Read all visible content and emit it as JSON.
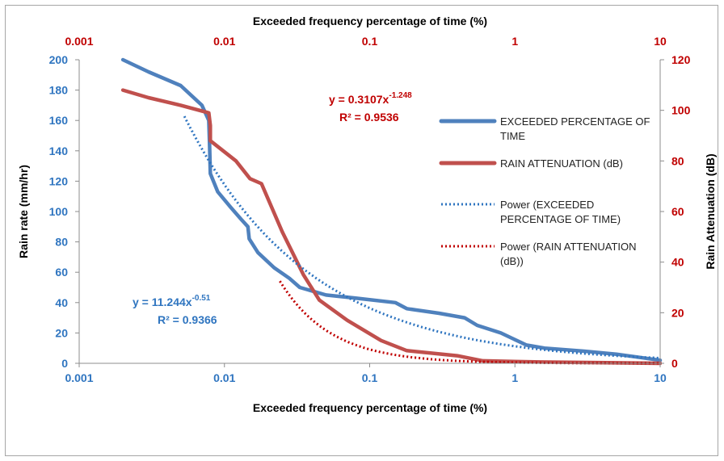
{
  "chart_data": {
    "type": "line",
    "title": "",
    "x_top": {
      "label": "Exceeded frequency percentage of time (%)",
      "scale": "log",
      "range": [
        0.001,
        10
      ],
      "ticks": [
        "0.001",
        "0.01",
        "0.1",
        "1",
        "10"
      ],
      "color": "#c00000"
    },
    "x_bottom": {
      "label": "Exceeded frequency percentage of time (%)",
      "scale": "log",
      "range": [
        0.001,
        10
      ],
      "ticks": [
        "0.001",
        "0.01",
        "0.1",
        "1",
        "10"
      ],
      "color": "#2f75c0"
    },
    "y_left": {
      "label": "Rain rate (mm/hr)",
      "range": [
        0,
        200
      ],
      "ticks": [
        "0",
        "20",
        "40",
        "60",
        "80",
        "100",
        "120",
        "140",
        "160",
        "180",
        "200"
      ],
      "color": "#2f75c0"
    },
    "y_right": {
      "label": "Rain Attenuation (dB)",
      "range": [
        0,
        120
      ],
      "ticks": [
        "0",
        "20",
        "40",
        "60",
        "80",
        "100",
        "120"
      ],
      "color": "#c00000"
    },
    "grid": false,
    "legend_position": "right",
    "series": [
      {
        "name": "EXCEEDED PERCENTAGE OF TIME",
        "axis": "left",
        "style": "solid",
        "color": "#4f81bd",
        "points": [
          [
            0.002,
            200
          ],
          [
            0.003,
            192
          ],
          [
            0.005,
            183
          ],
          [
            0.007,
            170
          ],
          [
            0.0078,
            160
          ],
          [
            0.0079,
            145
          ],
          [
            0.008,
            125
          ],
          [
            0.009,
            113
          ],
          [
            0.011,
            103
          ],
          [
            0.013,
            95
          ],
          [
            0.0145,
            90
          ],
          [
            0.0148,
            82
          ],
          [
            0.017,
            73
          ],
          [
            0.022,
            63
          ],
          [
            0.028,
            56
          ],
          [
            0.033,
            50
          ],
          [
            0.05,
            45
          ],
          [
            0.08,
            43
          ],
          [
            0.15,
            40
          ],
          [
            0.18,
            36
          ],
          [
            0.3,
            33
          ],
          [
            0.45,
            30
          ],
          [
            0.55,
            25
          ],
          [
            0.8,
            20
          ],
          [
            1.2,
            12
          ],
          [
            1.6,
            10
          ],
          [
            3,
            8
          ],
          [
            5,
            6
          ],
          [
            10,
            2
          ]
        ]
      },
      {
        "name": "RAIN ATTENUATION (dB)",
        "axis": "right",
        "style": "solid",
        "color": "#c0504d",
        "points": [
          [
            0.002,
            108
          ],
          [
            0.003,
            105
          ],
          [
            0.005,
            102
          ],
          [
            0.0078,
            99
          ],
          [
            0.008,
            94
          ],
          [
            0.008,
            88
          ],
          [
            0.012,
            80
          ],
          [
            0.015,
            73
          ],
          [
            0.018,
            71
          ],
          [
            0.025,
            52
          ],
          [
            0.035,
            35
          ],
          [
            0.045,
            25
          ],
          [
            0.07,
            17
          ],
          [
            0.12,
            9
          ],
          [
            0.18,
            5
          ],
          [
            0.4,
            3
          ],
          [
            0.6,
            1
          ],
          [
            1.5,
            0.5
          ],
          [
            10,
            0
          ]
        ]
      },
      {
        "name": "Power (EXCEEDED PERCENTAGE OF TIME)",
        "axis": "left",
        "style": "dotted",
        "color": "#2f75c0",
        "equation": {
          "a": 11.244,
          "b": -0.51
        },
        "x_range": [
          0.0053,
          10
        ]
      },
      {
        "name": "Power (RAIN ATTENUATION (dB))",
        "axis": "right",
        "style": "dotted",
        "color": "#c00000",
        "equation": {
          "a": 0.3107,
          "b": -1.248
        },
        "x_range": [
          0.0241,
          10
        ]
      }
    ],
    "annotations": {
      "blue_eq_main": "y = 11.244x",
      "blue_eq_exp": "-0.51",
      "blue_r2": "R² = 0.9366",
      "red_eq_main": "y = 0.3107x",
      "red_eq_exp": "-1.248",
      "red_r2": "R² = 0.9536"
    },
    "legend": {
      "line1_a": "EXCEEDED PERCENTAGE OF",
      "line1_b": "TIME",
      "line2_a": "RAIN ATTENUATION (dB)",
      "line3_a": "Power (EXCEEDED",
      "line3_b": "PERCENTAGE OF TIME)",
      "line4_a": "Power (RAIN ATTENUATION",
      "line4_b": "(dB))"
    }
  }
}
